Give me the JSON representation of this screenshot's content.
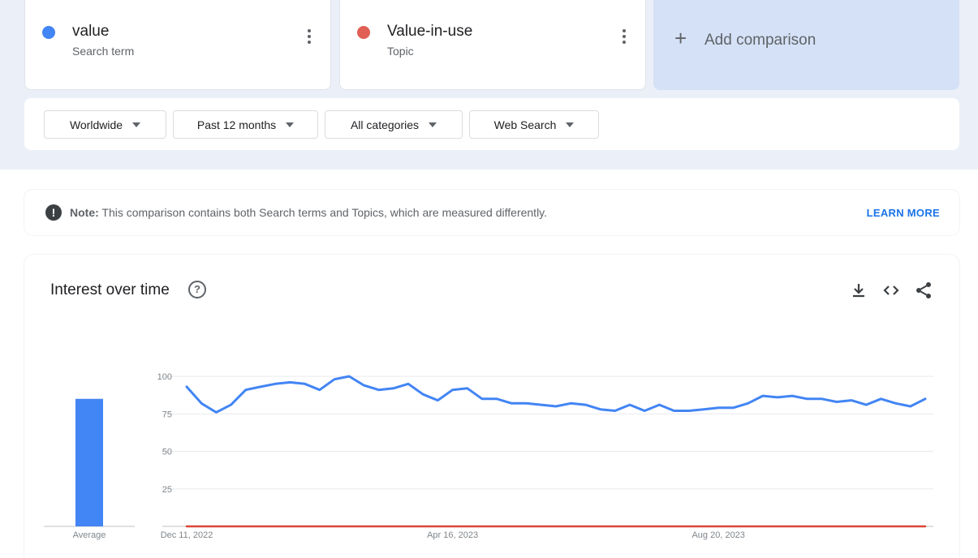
{
  "terms": [
    {
      "name": "value",
      "type": "Search term",
      "color": "#4285f4"
    },
    {
      "name": "Value-in-use",
      "type": "Topic",
      "color": "#db4437"
    }
  ],
  "add_comparison": {
    "label": "Add comparison",
    "icon": "plus-icon"
  },
  "filters": {
    "region": "Worldwide",
    "period": "Past 12 months",
    "category": "All categories",
    "search_type": "Web Search"
  },
  "note": {
    "icon": "exclamation-icon",
    "label": "Note:",
    "text": "This comparison contains both Search terms and Topics, which are measured differently.",
    "link": "LEARN MORE"
  },
  "interest_over_time": {
    "title": "Interest over time",
    "help_icon": "question-mark-icon",
    "actions": [
      "download-icon",
      "embed-code-icon",
      "share-icon"
    ]
  },
  "chart_data": {
    "type": "line",
    "x": [
      "Dec 11, 2022",
      "Dec 18, 2022",
      "Dec 25, 2022",
      "Jan 1, 2023",
      "Jan 8, 2023",
      "Jan 15, 2023",
      "Jan 22, 2023",
      "Jan 29, 2023",
      "Feb 5, 2023",
      "Feb 12, 2023",
      "Feb 19, 2023",
      "Feb 26, 2023",
      "Mar 5, 2023",
      "Mar 12, 2023",
      "Mar 19, 2023",
      "Mar 26, 2023",
      "Apr 2, 2023",
      "Apr 9, 2023",
      "Apr 16, 2023",
      "Apr 23, 2023",
      "Apr 30, 2023",
      "May 7, 2023",
      "May 14, 2023",
      "May 21, 2023",
      "May 28, 2023",
      "Jun 4, 2023",
      "Jun 11, 2023",
      "Jun 18, 2023",
      "Jun 25, 2023",
      "Jul 2, 2023",
      "Jul 9, 2023",
      "Jul 16, 2023",
      "Jul 23, 2023",
      "Jul 30, 2023",
      "Aug 6, 2023",
      "Aug 13, 2023",
      "Aug 20, 2023",
      "Aug 27, 2023",
      "Sep 3, 2023",
      "Sep 10, 2023",
      "Sep 17, 2023",
      "Sep 24, 2023",
      "Oct 1, 2023",
      "Oct 8, 2023",
      "Oct 15, 2023",
      "Oct 22, 2023",
      "Oct 29, 2023",
      "Nov 5, 2023",
      "Nov 12, 2023",
      "Nov 19, 2023",
      "Nov 26, 2023"
    ],
    "x_tick_labels": [
      "Dec 11, 2022",
      "Apr 16, 2023",
      "Aug 20, 2023"
    ],
    "series": [
      {
        "name": "value",
        "color": "#4285f4",
        "values": [
          93,
          82,
          76,
          81,
          91,
          93,
          95,
          96,
          95,
          91,
          98,
          100,
          94,
          91,
          92,
          95,
          88,
          84,
          91,
          92,
          85,
          85,
          82,
          82,
          81,
          80,
          82,
          81,
          78,
          77,
          81,
          77,
          81,
          77,
          77,
          78,
          79,
          79,
          82,
          87,
          86,
          87,
          85,
          85,
          83,
          84,
          81,
          85,
          82,
          80,
          85
        ],
        "average": 85
      },
      {
        "name": "Value-in-use",
        "color": "#db4437",
        "values": [
          0,
          0,
          0,
          0,
          0,
          0,
          0,
          0,
          0,
          0,
          0,
          0,
          0,
          0,
          0,
          0,
          0,
          0,
          0,
          0,
          0,
          0,
          0,
          0,
          0,
          0,
          0,
          0,
          0,
          0,
          0,
          0,
          0,
          0,
          0,
          0,
          0,
          0,
          0,
          0,
          0,
          0,
          0,
          0,
          0,
          0,
          0,
          0,
          0,
          0,
          0
        ],
        "average": 0
      }
    ],
    "y_ticks": [
      25,
      50,
      75,
      100
    ],
    "ylim": [
      0,
      100
    ],
    "average_label": "Average",
    "grid": true
  }
}
